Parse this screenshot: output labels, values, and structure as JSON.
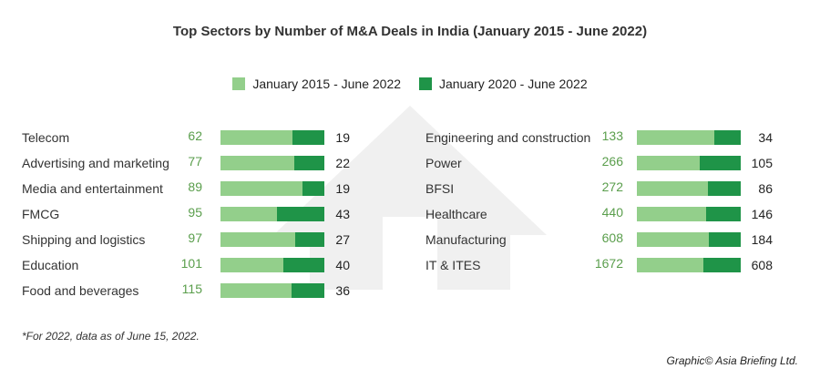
{
  "chart_data": {
    "type": "bar",
    "title": "Top Sectors by Number of M&A Deals in India (January 2015 - June 2022)",
    "series": [
      {
        "name": "January 2015 - June 2022",
        "color": "#93cf8b"
      },
      {
        "name": "January 2020 - June 2022",
        "color": "#1f9448"
      }
    ],
    "categories": [
      {
        "sector": "Telecom",
        "total": 62,
        "recent": 19
      },
      {
        "sector": "Advertising and marketing",
        "total": 77,
        "recent": 22
      },
      {
        "sector": "Media and entertainment",
        "total": 89,
        "recent": 19
      },
      {
        "sector": "FMCG",
        "total": 95,
        "recent": 43
      },
      {
        "sector": "Shipping and logistics",
        "total": 97,
        "recent": 27
      },
      {
        "sector": "Education",
        "total": 101,
        "recent": 40
      },
      {
        "sector": "Food and beverages",
        "total": 115,
        "recent": 36
      },
      {
        "sector": "Engineering and construction",
        "total": 133,
        "recent": 34
      },
      {
        "sector": "Power",
        "total": 266,
        "recent": 105
      },
      {
        "sector": "BFSI",
        "total": 272,
        "recent": 86
      },
      {
        "sector": "Healthcare",
        "total": 440,
        "recent": 146
      },
      {
        "sector": "Manufacturing",
        "total": 608,
        "recent": 184
      },
      {
        "sector": "IT & ITES",
        "total": 1672,
        "recent": 608
      }
    ]
  },
  "footnote": "*For 2022, data as of June 15, 2022.",
  "credit": "Graphic© Asia Briefing Ltd."
}
